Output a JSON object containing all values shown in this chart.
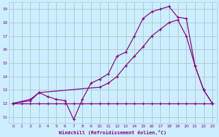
{
  "xlabel": "Windchill (Refroidissement éolien,°C)",
  "background_color": "#cceeff",
  "grid_color": "#aacccc",
  "line_color": "#880088",
  "xlim": [
    -0.5,
    23.5
  ],
  "ylim": [
    10.5,
    19.5
  ],
  "xticks": [
    0,
    1,
    2,
    3,
    4,
    5,
    6,
    7,
    8,
    9,
    10,
    11,
    12,
    13,
    14,
    15,
    16,
    17,
    18,
    19,
    20,
    21,
    22,
    23
  ],
  "yticks": [
    11,
    12,
    13,
    14,
    15,
    16,
    17,
    18,
    19
  ],
  "line1_x": [
    0,
    1,
    2,
    3,
    4,
    5,
    6,
    7,
    8,
    9,
    10,
    11,
    12,
    13,
    14,
    15,
    16,
    17,
    18,
    19,
    20,
    21,
    22,
    23
  ],
  "line1_y": [
    12,
    12,
    12,
    12,
    12,
    12,
    12,
    12,
    12,
    12,
    12,
    12,
    12,
    12,
    12,
    12,
    12,
    12,
    12,
    12,
    12,
    12,
    12,
    12
  ],
  "line2_x": [
    0,
    2,
    3,
    10,
    11,
    12,
    13,
    14,
    15,
    16,
    17,
    18,
    19,
    20,
    21,
    22,
    23
  ],
  "line2_y": [
    12,
    12.2,
    12.8,
    13.2,
    13.5,
    14.0,
    14.8,
    15.5,
    16.2,
    17.0,
    17.5,
    18.0,
    18.2,
    17.0,
    14.8,
    13.0,
    12.0
  ],
  "line3_x": [
    0,
    2,
    3,
    4,
    5,
    6,
    7,
    8,
    9,
    10,
    11,
    12,
    13,
    14,
    15,
    16,
    17,
    18,
    19,
    20,
    21,
    22,
    23
  ],
  "line3_y": [
    12,
    12.3,
    12.8,
    12.5,
    12.3,
    12.2,
    10.8,
    12.3,
    13.5,
    13.8,
    14.2,
    15.5,
    15.8,
    17.0,
    18.3,
    18.8,
    19.0,
    19.2,
    18.4,
    18.3,
    14.8,
    13.0,
    12.0
  ]
}
